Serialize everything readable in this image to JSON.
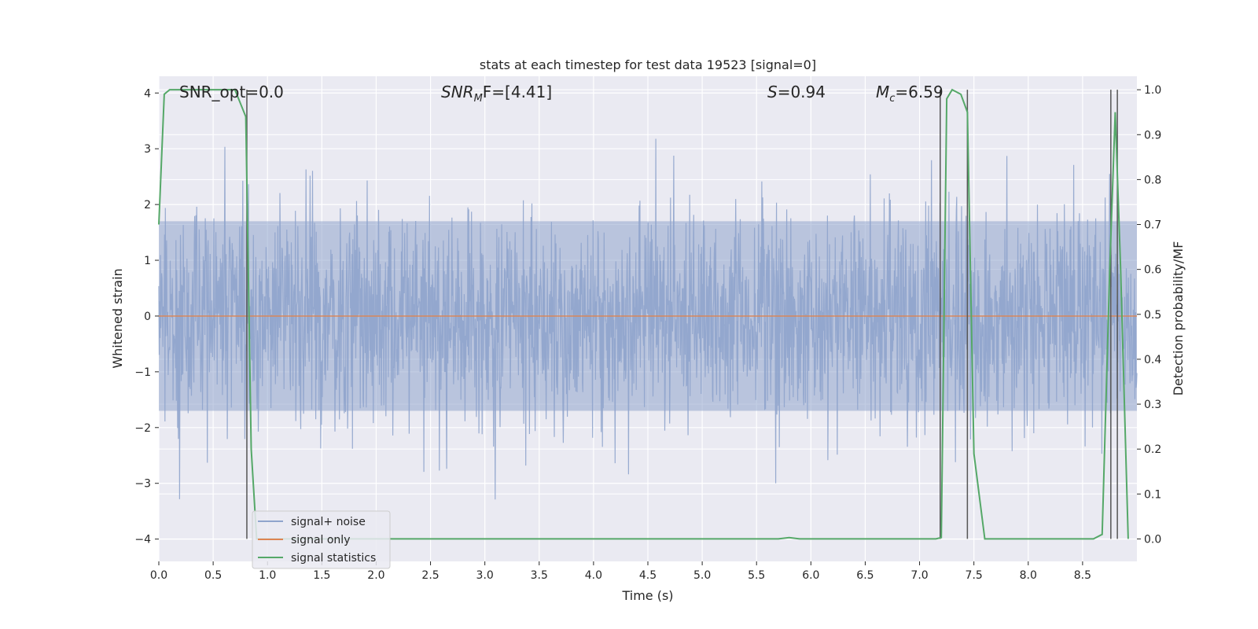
{
  "chart_data": {
    "type": "line",
    "title": "stats at each timestep for test data 19523 [signal=0]",
    "xlabel": "Time (s)",
    "ylabel_left": "Whitened strain",
    "ylabel_right": "Detection probability/MF",
    "xlim": [
      0,
      9.0
    ],
    "ylim_left": [
      -4.4,
      4.3
    ],
    "ylim_right": [
      -0.05,
      1.03
    ],
    "xticks": [
      "0.0",
      "0.5",
      "1.0",
      "1.5",
      "2.0",
      "2.5",
      "3.0",
      "3.5",
      "4.0",
      "4.5",
      "5.0",
      "5.5",
      "6.0",
      "6.5",
      "7.0",
      "7.5",
      "8.0",
      "8.5"
    ],
    "xtick_values": [
      0,
      0.5,
      1.0,
      1.5,
      2.0,
      2.5,
      3.0,
      3.5,
      4.0,
      4.5,
      5.0,
      5.5,
      6.0,
      6.5,
      7.0,
      7.5,
      8.0,
      8.5
    ],
    "yticks_left": [
      "4",
      "3",
      "2",
      "1",
      "0",
      "−1",
      "−2",
      "−3",
      "−4"
    ],
    "ytick_left_values": [
      4,
      3,
      2,
      1,
      0,
      -1,
      -2,
      -3,
      -4
    ],
    "yticks_right": [
      "1.0",
      "0.9",
      "0.8",
      "0.7",
      "0.6",
      "0.5",
      "0.4",
      "0.3",
      "0.2",
      "0.1",
      "0.0"
    ],
    "ytick_right_values": [
      1.0,
      0.9,
      0.8,
      0.7,
      0.6,
      0.5,
      0.4,
      0.3,
      0.2,
      0.1,
      0.0
    ],
    "annotations": {
      "snr_opt": "SNR_opt=0.0",
      "snr_mf_main": "SNR",
      "snr_mf_sub": "M",
      "snr_mf_rest": "F=[4.41]",
      "s_main": "S",
      "s_rest": "=0.94",
      "mc_main": "M",
      "mc_sub": "c",
      "mc_rest": "=6.59"
    },
    "legend": {
      "placement": "lower-left",
      "entries": [
        "signal+ noise",
        "signal only",
        "signal statistics"
      ]
    },
    "series": [
      {
        "name": "signal+ noise",
        "color": "#8fa4cc",
        "kind": "noise",
        "envelope_typical": [
          -1.7,
          1.7
        ],
        "envelope_extreme": [
          -3.95,
          3.9
        ]
      },
      {
        "name": "signal only",
        "color": "#dd8452",
        "x": [
          0,
          9.0
        ],
        "y": [
          0,
          0
        ]
      },
      {
        "name": "signal statistics",
        "color": "#55a868",
        "axis": "right",
        "x": [
          0,
          0.05,
          0.1,
          0.5,
          0.7,
          0.8,
          0.85,
          0.9,
          5.7,
          5.8,
          5.9,
          7.15,
          7.2,
          7.25,
          7.3,
          7.38,
          7.44,
          7.5,
          7.6,
          8.6,
          8.68,
          8.75,
          8.8,
          8.85,
          8.92
        ],
        "y": [
          0.7,
          0.99,
          1.0,
          1.0,
          1.0,
          0.94,
          0.2,
          0.0,
          0.0,
          0.003,
          0.0,
          0.0,
          0.003,
          0.98,
          1.0,
          0.99,
          0.95,
          0.19,
          0.0,
          0.0,
          0.01,
          0.6,
          0.95,
          0.6,
          0.0
        ]
      }
    ],
    "vlines": [
      0.81,
      7.19,
      7.44,
      8.76,
      8.82
    ]
  }
}
